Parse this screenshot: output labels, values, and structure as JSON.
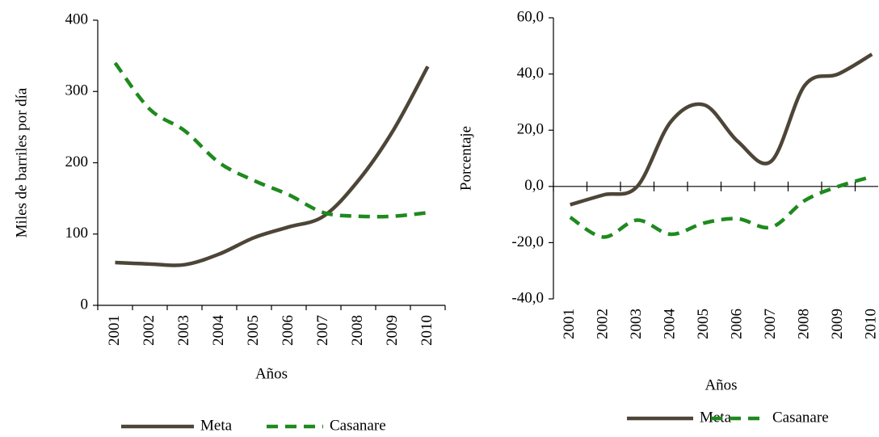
{
  "chart_data": [
    {
      "type": "line",
      "y_label": "Miles de barriles por día",
      "x_label": "Años",
      "legend": "bottom",
      "categories": [
        "2001",
        "2002",
        "2003",
        "2004",
        "2005",
        "2006",
        "2007",
        "2008",
        "2009",
        "2010"
      ],
      "ylim": [
        0,
        400
      ],
      "yticks": [
        0,
        100,
        200,
        300,
        400
      ],
      "series": [
        {
          "name": "Meta",
          "color": "#4d4537",
          "style": "solid",
          "values": [
            60,
            58,
            57,
            72,
            95,
            110,
            125,
            175,
            245,
            335
          ]
        },
        {
          "name": "Casanare",
          "color": "#1e8a1e",
          "style": "dashed",
          "values": [
            340,
            275,
            245,
            200,
            175,
            155,
            130,
            125,
            125,
            130
          ]
        }
      ]
    },
    {
      "type": "line",
      "y_label": "Porcentaje",
      "x_label": "Años",
      "legend": "bottom",
      "categories": [
        "2001",
        "2002",
        "2003",
        "2004",
        "2005",
        "2006",
        "2007",
        "2008",
        "2009",
        "2010"
      ],
      "ylim": [
        -40,
        60
      ],
      "yticks": [
        {
          "value": -40,
          "label": "-40,0"
        },
        {
          "value": -20,
          "label": "-20,0"
        },
        {
          "value": 0,
          "label": "0,0"
        },
        {
          "value": 20,
          "label": "20,0"
        },
        {
          "value": 40,
          "label": "40,0"
        },
        {
          "value": 60,
          "label": "60,0"
        }
      ],
      "series": [
        {
          "name": "Meta",
          "color": "#4d4537",
          "style": "solid",
          "values": [
            -6.5,
            -3,
            0,
            23,
            29,
            16,
            9,
            36,
            40,
            47
          ]
        },
        {
          "name": "Casanare",
          "color": "#1e8a1e",
          "style": "dashed",
          "values": [
            -11,
            -18,
            -12,
            -17,
            -13,
            -11.5,
            -14.5,
            -5,
            0,
            3.5
          ]
        }
      ]
    }
  ]
}
